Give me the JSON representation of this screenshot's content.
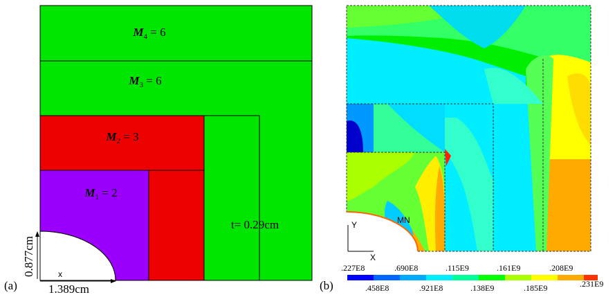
{
  "panel_a": {
    "label": "(a)",
    "regions": [
      {
        "name": "M4",
        "sym": "M",
        "sub": "4",
        "value": "6",
        "color": "#00e600"
      },
      {
        "name": "M3",
        "sym": "M",
        "sub": "3",
        "value": "6",
        "color": "#00e600"
      },
      {
        "name": "M2",
        "sym": "M",
        "sub": "2",
        "value": "3",
        "color": "#ee0000"
      },
      {
        "name": "M1",
        "sym": "M",
        "sub": "1",
        "value": "2",
        "color": "#9b00ff"
      }
    ],
    "thickness_label": "t= 0.29cm",
    "dim_vertical": "0.877cm",
    "dim_horizontal": "1.389cm",
    "axis_x": "x"
  },
  "panel_b": {
    "label": "(b)",
    "axis_x": "X",
    "axis_y": "Y",
    "min_marker": "MN",
    "legend_top": [
      ".227E8",
      ".690E8",
      ".115E9",
      ".161E9",
      ".208E9"
    ],
    "legend_bottom": [
      ".458E8",
      ".921E8",
      ".138E9",
      ".185E9",
      ".231E9"
    ],
    "legend_colors": [
      "#0000ff",
      "#0066ff",
      "#00aaff",
      "#00eeff",
      "#00ff99",
      "#00ff00",
      "#aaff00",
      "#ffff00",
      "#ffaa00",
      "#ff3300"
    ]
  }
}
